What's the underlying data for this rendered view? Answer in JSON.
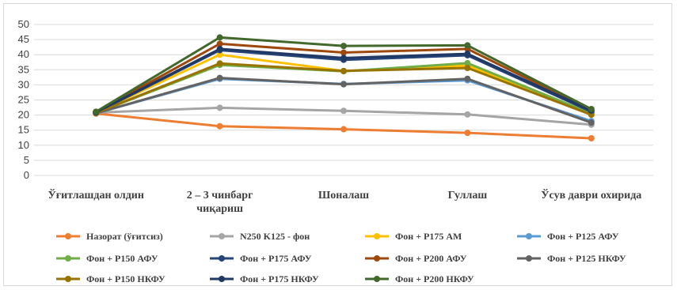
{
  "chart_data": {
    "type": "line",
    "title": "",
    "xlabel": "",
    "ylabel": "",
    "ylim": [
      0,
      50
    ],
    "yticks": [
      0,
      5,
      10,
      15,
      20,
      25,
      30,
      35,
      40,
      45,
      50
    ],
    "grid": true,
    "legend_position": "bottom",
    "categories": [
      [
        "Ўғитлашдан олдин"
      ],
      [
        "2 – 3 чинбарг",
        "чиқариш"
      ],
      [
        "Шоналаш"
      ],
      [
        "Гуллаш"
      ],
      [
        "Ўсув даври охирида"
      ]
    ],
    "series": [
      {
        "name": "Назорат (ўғитсиз)",
        "color": "#ED7D31",
        "values": [
          20.5,
          16.3,
          15.3,
          14.1,
          12.3
        ]
      },
      {
        "name": "N250 K125 - фон",
        "color": "#A5A5A5",
        "values": [
          20.8,
          22.4,
          21.4,
          20.2,
          16.8
        ]
      },
      {
        "name": "Фон + P175 АМ",
        "color": "#FFC000",
        "values": [
          20.9,
          40.0,
          34.6,
          36.4,
          20.2
        ]
      },
      {
        "name": "Фон + P125 АФУ",
        "color": "#5B9BD5",
        "values": [
          20.6,
          32.0,
          30.3,
          31.5,
          18.0
        ]
      },
      {
        "name": "Фон + P150 АФУ",
        "color": "#70AD47",
        "values": [
          20.7,
          36.6,
          34.5,
          37.2,
          20.5
        ]
      },
      {
        "name": "Фон + P175 АФУ",
        "color": "#264478",
        "values": [
          20.8,
          41.5,
          38.3,
          39.8,
          21.1
        ]
      },
      {
        "name": "Фон + P200  АФУ",
        "color": "#9E480E",
        "values": [
          21.0,
          43.6,
          40.7,
          41.9,
          21.6
        ]
      },
      {
        "name": "Фон + P125 НКФУ",
        "color": "#636363",
        "values": [
          20.6,
          32.3,
          30.2,
          32.0,
          17.5
        ]
      },
      {
        "name": "Фон + P150 НКФУ",
        "color": "#997300",
        "values": [
          20.7,
          37.1,
          34.6,
          35.6,
          20.1
        ]
      },
      {
        "name": "Фон + P175 НКФУ",
        "color": "#1F3864",
        "values": [
          20.9,
          41.9,
          38.9,
          40.3,
          21.5
        ]
      },
      {
        "name": "Фон + P200 НКФУ",
        "color": "#43682B",
        "values": [
          21.1,
          45.7,
          42.9,
          43.1,
          22.0
        ]
      }
    ]
  }
}
